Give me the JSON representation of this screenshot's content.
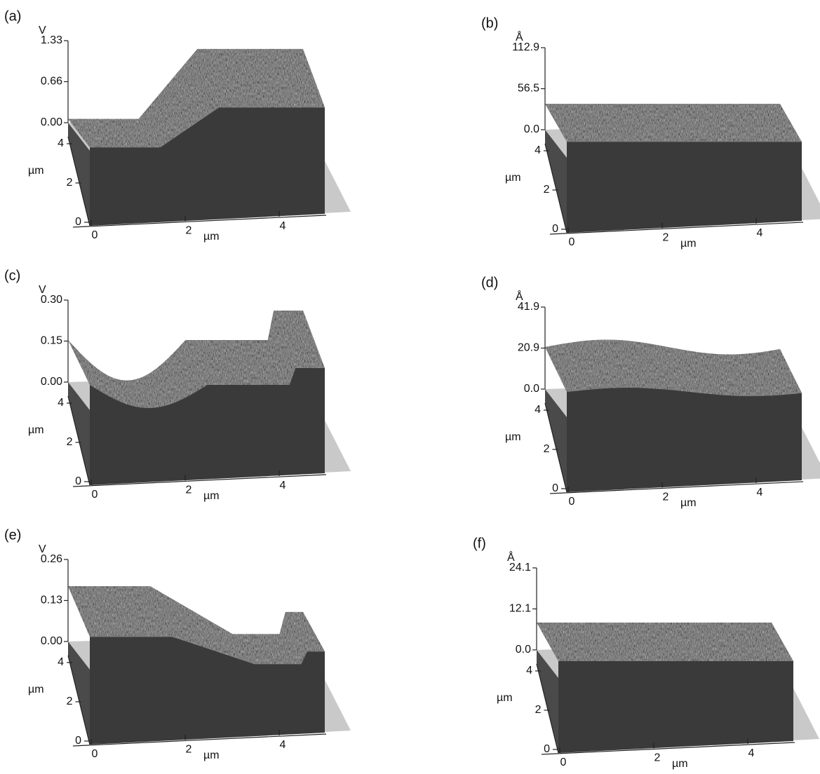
{
  "panels": [
    {
      "label": "(a)",
      "z_unit": "V",
      "z_ticks": [
        "1.33",
        "0.66",
        "0.00"
      ],
      "y_ticks": [
        "4",
        "2",
        "0"
      ],
      "y_unit": "µm",
      "x_ticks": [
        "0",
        "2",
        "4"
      ],
      "x_unit": "µm"
    },
    {
      "label": "(b)",
      "z_unit": "Å",
      "z_ticks": [
        "112.9",
        "56.5",
        "0.0"
      ],
      "y_ticks": [
        "4",
        "2",
        "0"
      ],
      "y_unit": "µm",
      "x_ticks": [
        "0",
        "2",
        "4"
      ],
      "x_unit": "µm"
    },
    {
      "label": "(c)",
      "z_unit": "V",
      "z_ticks": [
        "0.30",
        "0.15",
        "0.00"
      ],
      "y_ticks": [
        "4",
        "2",
        "0"
      ],
      "y_unit": "µm",
      "x_ticks": [
        "0",
        "2",
        "4"
      ],
      "x_unit": "µm"
    },
    {
      "label": "(d)",
      "z_unit": "Å",
      "z_ticks": [
        "41.9",
        "20.9",
        "0.0"
      ],
      "y_ticks": [
        "4",
        "2",
        "0"
      ],
      "y_unit": "µm",
      "x_ticks": [
        "0",
        "2",
        "4"
      ],
      "x_unit": "µm"
    },
    {
      "label": "(e)",
      "z_unit": "V",
      "z_ticks": [
        "0.26",
        "0.13",
        "0.00"
      ],
      "y_ticks": [
        "4",
        "2",
        "0"
      ],
      "y_unit": "µm",
      "x_ticks": [
        "0",
        "2",
        "4"
      ],
      "x_unit": "µm"
    },
    {
      "label": "(f)",
      "z_unit": "Å",
      "z_ticks": [
        "24.1",
        "12.1",
        "0.0"
      ],
      "y_ticks": [
        "4",
        "2",
        "0"
      ],
      "y_unit": "µm",
      "x_ticks": [
        "0",
        "2",
        "4"
      ],
      "x_unit": "µm"
    }
  ]
}
